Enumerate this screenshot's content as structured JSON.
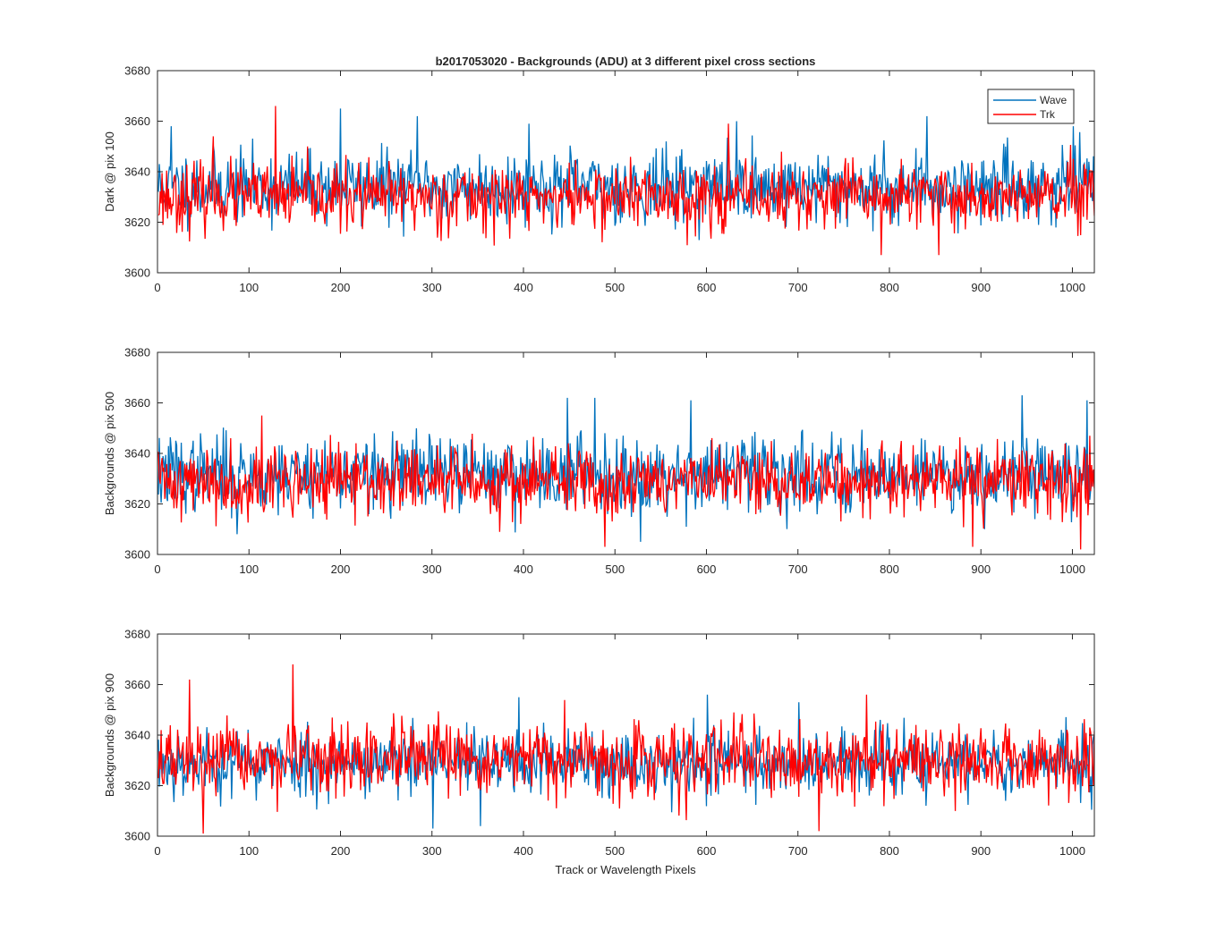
{
  "title": "b2017053020 - Backgrounds (ADU) at 3 different pixel cross sections",
  "xlabel": "Track or Wavelength Pixels",
  "legend": [
    "Wave",
    "Trk"
  ],
  "colors": {
    "Wave": "#0072bd",
    "Trk": "#ff0000",
    "axes": "#262626",
    "background": "#ffffff"
  },
  "chart_data": [
    {
      "type": "line",
      "ylabel": "Dark @ pix 100",
      "xlim": [
        0,
        1024
      ],
      "ylim": [
        3600,
        3680
      ],
      "xticks": [
        0,
        100,
        200,
        300,
        400,
        500,
        600,
        700,
        800,
        900,
        1000
      ],
      "yticks": [
        3600,
        3620,
        3640,
        3660,
        3680
      ],
      "legend_position": "top-right",
      "series": [
        {
          "name": "Wave",
          "n_points": 1024,
          "mean": 3634,
          "std": 7,
          "min": 3610,
          "max": 3665,
          "seed": 11,
          "features": [
            [
              14,
              3658
            ],
            [
              199,
              3665
            ],
            [
              283,
              3662
            ],
            [
              405,
              3659
            ],
            [
              632,
              3660
            ],
            [
              840,
              3662
            ],
            [
              1000,
              3658
            ]
          ]
        },
        {
          "name": "Trk",
          "n_points": 1024,
          "mean": 3630,
          "std": 6.5,
          "min": 3607,
          "max": 3666,
          "seed": 23,
          "features": [
            [
              128,
              3666
            ],
            [
              60,
              3654
            ],
            [
              623,
              3659
            ],
            [
              790,
              3607
            ],
            [
              853,
              3607
            ],
            [
              1012,
              3643
            ]
          ]
        }
      ]
    },
    {
      "type": "line",
      "ylabel": "Backgrounds @ pix 500",
      "xlim": [
        0,
        1024
      ],
      "ylim": [
        3600,
        3680
      ],
      "xticks": [
        0,
        100,
        200,
        300,
        400,
        500,
        600,
        700,
        800,
        900,
        1000
      ],
      "yticks": [
        3600,
        3620,
        3640,
        3660,
        3680
      ],
      "series": [
        {
          "name": "Wave",
          "n_points": 1024,
          "mean": 3632,
          "std": 7.5,
          "min": 3605,
          "max": 3663,
          "seed": 37,
          "features": [
            [
              86,
              3608
            ],
            [
              447,
              3662
            ],
            [
              477,
              3662
            ],
            [
              582,
              3661
            ],
            [
              944,
              3663
            ],
            [
              1015,
              3661
            ],
            [
              527,
              3605
            ]
          ]
        },
        {
          "name": "Trk",
          "n_points": 1024,
          "mean": 3629,
          "std": 7,
          "min": 3602,
          "max": 3655,
          "seed": 41,
          "features": [
            [
              113,
              3655
            ],
            [
              488,
              3603
            ],
            [
              890,
              3603
            ],
            [
              1008,
              3602
            ],
            [
              1018,
              3647
            ]
          ]
        }
      ]
    },
    {
      "type": "line",
      "ylabel": "Backgrounds @ pix 900",
      "xlim": [
        0,
        1024
      ],
      "ylim": [
        3600,
        3680
      ],
      "xticks": [
        0,
        100,
        200,
        300,
        400,
        500,
        600,
        700,
        800,
        900,
        1000
      ],
      "yticks": [
        3600,
        3620,
        3640,
        3660,
        3680
      ],
      "series": [
        {
          "name": "Wave",
          "n_points": 1024,
          "mean": 3629,
          "std": 6.5,
          "min": 3603,
          "max": 3656,
          "seed": 53,
          "features": [
            [
              300,
              3603
            ],
            [
              352,
              3604
            ],
            [
              394,
              3655
            ],
            [
              600,
              3656
            ],
            [
              700,
              3653
            ]
          ]
        },
        {
          "name": "Trk",
          "n_points": 1024,
          "mean": 3630,
          "std": 7,
          "min": 3601,
          "max": 3668,
          "seed": 67,
          "features": [
            [
              34,
              3662
            ],
            [
              49,
              3601
            ],
            [
              147,
              3668
            ],
            [
              722,
              3602
            ],
            [
              774,
              3656
            ],
            [
              1018,
              3643
            ]
          ]
        }
      ]
    }
  ]
}
